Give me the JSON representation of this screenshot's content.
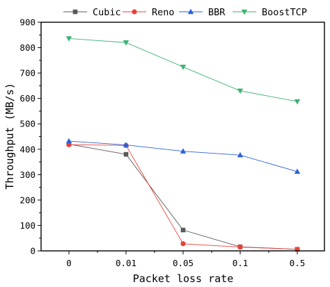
{
  "chart_data": {
    "type": "line",
    "categories": [
      "0",
      "0.01",
      "0.05",
      "0.1",
      "0.5"
    ],
    "xlabel": "Packet loss rate",
    "ylabel": "Throughput (MB/s)",
    "ylim": [
      0,
      900
    ],
    "yticks": [
      0,
      100,
      200,
      300,
      400,
      500,
      600,
      700,
      800,
      900
    ],
    "grid": false,
    "legend_position": "top",
    "series": [
      {
        "name": "Cubic",
        "color": "#595959",
        "marker": "square",
        "values": [
          420,
          380,
          82,
          16,
          6
        ]
      },
      {
        "name": "Reno",
        "color": "#e8413b",
        "marker": "circle",
        "values": [
          418,
          415,
          28,
          15,
          6
        ]
      },
      {
        "name": "BBR",
        "color": "#2c62d8",
        "marker": "triangle-up",
        "values": [
          432,
          417,
          392,
          377,
          312
        ]
      },
      {
        "name": "BoostTCP",
        "color": "#3cb371",
        "marker": "triangle-down",
        "values": [
          836,
          820,
          724,
          630,
          588
        ]
      }
    ]
  }
}
